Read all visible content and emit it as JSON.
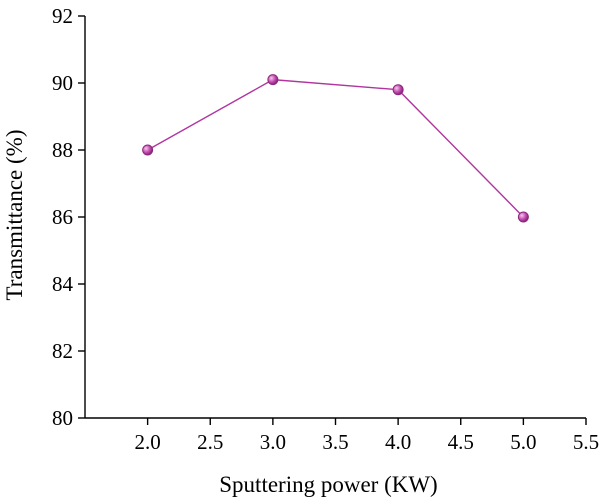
{
  "chart_data": {
    "type": "line",
    "title": "",
    "xlabel": "Sputtering power (KW)",
    "ylabel": "Transmittance (%)",
    "xlim": [
      1.5,
      5.5
    ],
    "ylim": [
      80,
      92
    ],
    "xticks": [
      2.0,
      2.5,
      3.0,
      3.5,
      4.0,
      4.5,
      5.0,
      5.5
    ],
    "yticks": [
      80,
      82,
      84,
      86,
      88,
      90,
      92
    ],
    "xtick_labels": [
      "2.0",
      "2.5",
      "3.0",
      "3.5",
      "4.0",
      "4.5",
      "5.0",
      "5.5"
    ],
    "ytick_labels": [
      "80",
      "82",
      "84",
      "86",
      "88",
      "90",
      "92"
    ],
    "grid": false,
    "legend": "none",
    "series": [
      {
        "color": "#b0359e",
        "x": [
          2.0,
          3.0,
          4.0,
          5.0
        ],
        "y": [
          88.0,
          90.1,
          89.8,
          86.0
        ]
      }
    ]
  }
}
